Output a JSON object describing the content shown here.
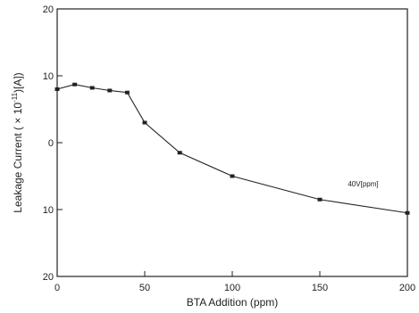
{
  "colors": {
    "ink": "#222222",
    "paper": "#ffffff"
  },
  "chart_data": {
    "type": "line",
    "title": "",
    "xlabel": "BTA Addition (ppm)",
    "ylabel": "Leakage Current ( × 10",
    "ylabel_exponent": "-11",
    "ylabel_suffix": ")[A])",
    "xlim": [
      0,
      200
    ],
    "ylim": [
      -20,
      20
    ],
    "x_ticks": [
      0,
      50,
      100,
      150,
      200
    ],
    "x_tick_labels": [
      "0",
      "50",
      "100",
      "150",
      "200"
    ],
    "y_ticks": [
      20,
      10,
      0,
      -10,
      -20
    ],
    "y_tick_labels": [
      "20",
      "10",
      "0",
      "10",
      "20"
    ],
    "grid": false,
    "series": [
      {
        "x": [
          0,
          10,
          20,
          30,
          40,
          50,
          70,
          100,
          150,
          200
        ],
        "y": [
          8,
          8.7,
          8.2,
          7.8,
          7.5,
          3,
          -1.5,
          -5,
          -8.5,
          -10.5
        ]
      }
    ],
    "annotations": [
      {
        "text": "40V[ppm]",
        "x": 166,
        "y": -6.5
      }
    ]
  }
}
